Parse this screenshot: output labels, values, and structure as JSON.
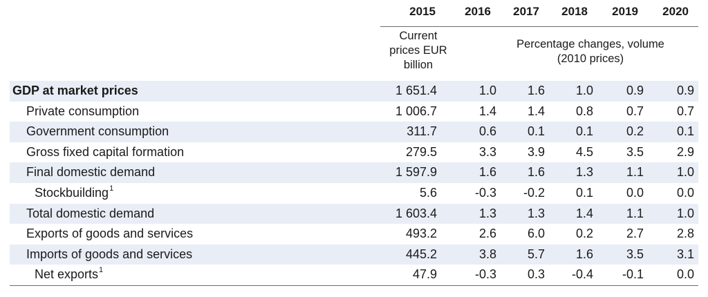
{
  "years": [
    "2015",
    "2016",
    "2017",
    "2018",
    "2019",
    "2020"
  ],
  "subheaders": {
    "current_prices": [
      "Current",
      "prices EUR",
      "billion"
    ],
    "pct_changes": [
      "Percentage changes, volume",
      "(2010 prices)"
    ]
  },
  "rows": [
    {
      "label": "GDP at market prices",
      "footnote": "",
      "level": 0,
      "values": [
        "1 651.4",
        "1.0",
        "1.6",
        "1.0",
        "0.9",
        "0.9"
      ]
    },
    {
      "label": "Private consumption",
      "footnote": "",
      "level": 1,
      "values": [
        "1 006.7",
        "1.4",
        "1.4",
        "0.8",
        "0.7",
        "0.7"
      ]
    },
    {
      "label": "Government consumption",
      "footnote": "",
      "level": 1,
      "values": [
        "311.7",
        "0.6",
        "0.1",
        "0.1",
        "0.2",
        "0.1"
      ]
    },
    {
      "label": "Gross fixed capital formation",
      "footnote": "",
      "level": 1,
      "values": [
        "279.5",
        "3.3",
        "3.9",
        "4.5",
        "3.5",
        "2.9"
      ]
    },
    {
      "label": "Final domestic demand",
      "footnote": "",
      "level": 1,
      "values": [
        "1 597.9",
        "1.6",
        "1.6",
        "1.3",
        "1.1",
        "1.0"
      ]
    },
    {
      "label": "Stockbuilding",
      "footnote": "1",
      "level": 2,
      "values": [
        "5.6",
        "-0.3",
        "-0.2",
        "0.1",
        "0.0",
        "0.0"
      ]
    },
    {
      "label": "Total domestic demand",
      "footnote": "",
      "level": 1,
      "values": [
        "1 603.4",
        "1.3",
        "1.3",
        "1.4",
        "1.1",
        "1.0"
      ]
    },
    {
      "label": "Exports of goods and services",
      "footnote": "",
      "level": 1,
      "values": [
        "493.2",
        "2.6",
        "6.0",
        "0.2",
        "2.7",
        "2.8"
      ]
    },
    {
      "label": "Imports of goods and services",
      "footnote": "",
      "level": 1,
      "values": [
        "445.2",
        "3.8",
        "5.7",
        "1.6",
        "3.5",
        "3.1"
      ]
    },
    {
      "label": "Net exports",
      "footnote": "1",
      "level": 2,
      "values": [
        "47.9",
        "-0.3",
        "0.3",
        "-0.4",
        "-0.1",
        "0.0"
      ]
    }
  ],
  "colors": {
    "row_shade": "#e9edf6",
    "rule": "#6b6b6b"
  }
}
